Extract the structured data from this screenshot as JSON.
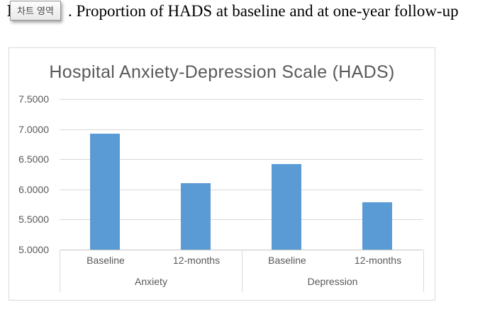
{
  "caption": {
    "prefix": "F",
    "suffix": ". Proportion of HADS at baseline and at one-year follow-up"
  },
  "tooltip": {
    "label": "차트 영역"
  },
  "chart_data": {
    "type": "bar",
    "title": "Hospital Anxiety-Depression Scale (HADS)",
    "group_labels": [
      "Anxiety",
      "Depression"
    ],
    "categories": [
      "Baseline",
      "12-months",
      "Baseline",
      "12-months"
    ],
    "values": [
      6.93,
      6.1,
      6.42,
      5.79
    ],
    "ylim": [
      5.0,
      7.5
    ],
    "yticks": [
      "7.5000",
      "7.0000",
      "6.5000",
      "6.0000",
      "5.5000",
      "5.0000"
    ],
    "legend": "none",
    "grid": "horizontal",
    "bar_color": "#5B9BD5",
    "grid_color": "#D9D9D9",
    "axis_line_color": "#C6C6C6",
    "text_color": "#595959"
  }
}
